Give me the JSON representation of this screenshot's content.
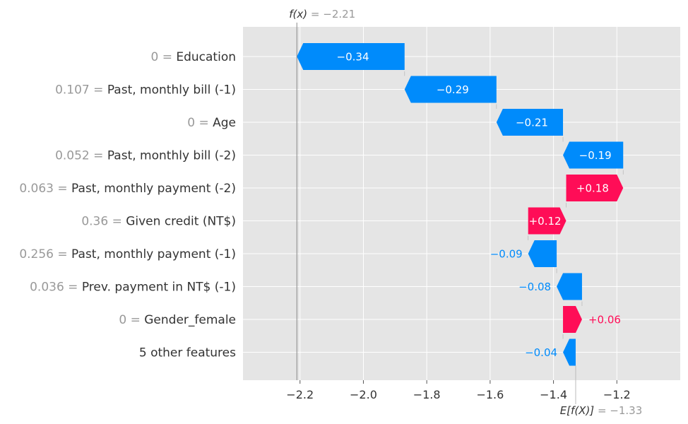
{
  "chart_data": {
    "type": "waterfall",
    "title": "",
    "fx_label": "f(x)",
    "fx_value_text": "= −2.21",
    "fx_value": -2.21,
    "ex_label": "E[f(X)]",
    "ex_value_text": "= −1.33",
    "ex_value": -1.33,
    "xlim": [
      -2.38,
      -1.0
    ],
    "xticks": [
      -2.2,
      -2.0,
      -1.8,
      -1.6,
      -1.4,
      -1.2
    ],
    "xtick_labels": [
      "−2.2",
      "−2.0",
      "−1.8",
      "−1.6",
      "−1.4",
      "−1.2"
    ],
    "grid": true,
    "colors": {
      "positive": "#ff0d57",
      "negative": "#008bfb",
      "background": "#e5e5e5",
      "grid": "#ffffff"
    },
    "features": [
      {
        "value": "0",
        "name": "Education",
        "contribution": -0.34,
        "label": "−0.34",
        "start": -1.87,
        "end": -2.21
      },
      {
        "value": "0.107",
        "name": "Past, monthly bill (-1)",
        "contribution": -0.29,
        "label": "−0.29",
        "start": -1.58,
        "end": -1.87
      },
      {
        "value": "0",
        "name": "Age",
        "contribution": -0.21,
        "label": "−0.21",
        "start": -1.37,
        "end": -1.58
      },
      {
        "value": "0.052",
        "name": "Past, monthly bill (-2)",
        "contribution": -0.19,
        "label": "−0.19",
        "start": -1.18,
        "end": -1.37
      },
      {
        "value": "0.063",
        "name": "Past, monthly payment (-2)",
        "contribution": 0.18,
        "label": "+0.18",
        "start": -1.36,
        "end": -1.18
      },
      {
        "value": "0.36",
        "name": "Given credit (NT$)",
        "contribution": 0.12,
        "label": "+0.12",
        "start": -1.48,
        "end": -1.36
      },
      {
        "value": "0.256",
        "name": "Past, monthly payment (-1)",
        "contribution": -0.09,
        "label": "−0.09",
        "start": -1.39,
        "end": -1.48
      },
      {
        "value": "0.036",
        "name": "Prev. payment in NT$ (-1)",
        "contribution": -0.08,
        "label": "−0.08",
        "start": -1.31,
        "end": -1.39
      },
      {
        "value": "0",
        "name": "Gender_female",
        "contribution": 0.06,
        "label": "+0.06",
        "start": -1.37,
        "end": -1.31
      },
      {
        "value": "",
        "name": "5 other features",
        "contribution": -0.04,
        "label": "−0.04",
        "start": -1.33,
        "end": -1.37
      }
    ]
  }
}
